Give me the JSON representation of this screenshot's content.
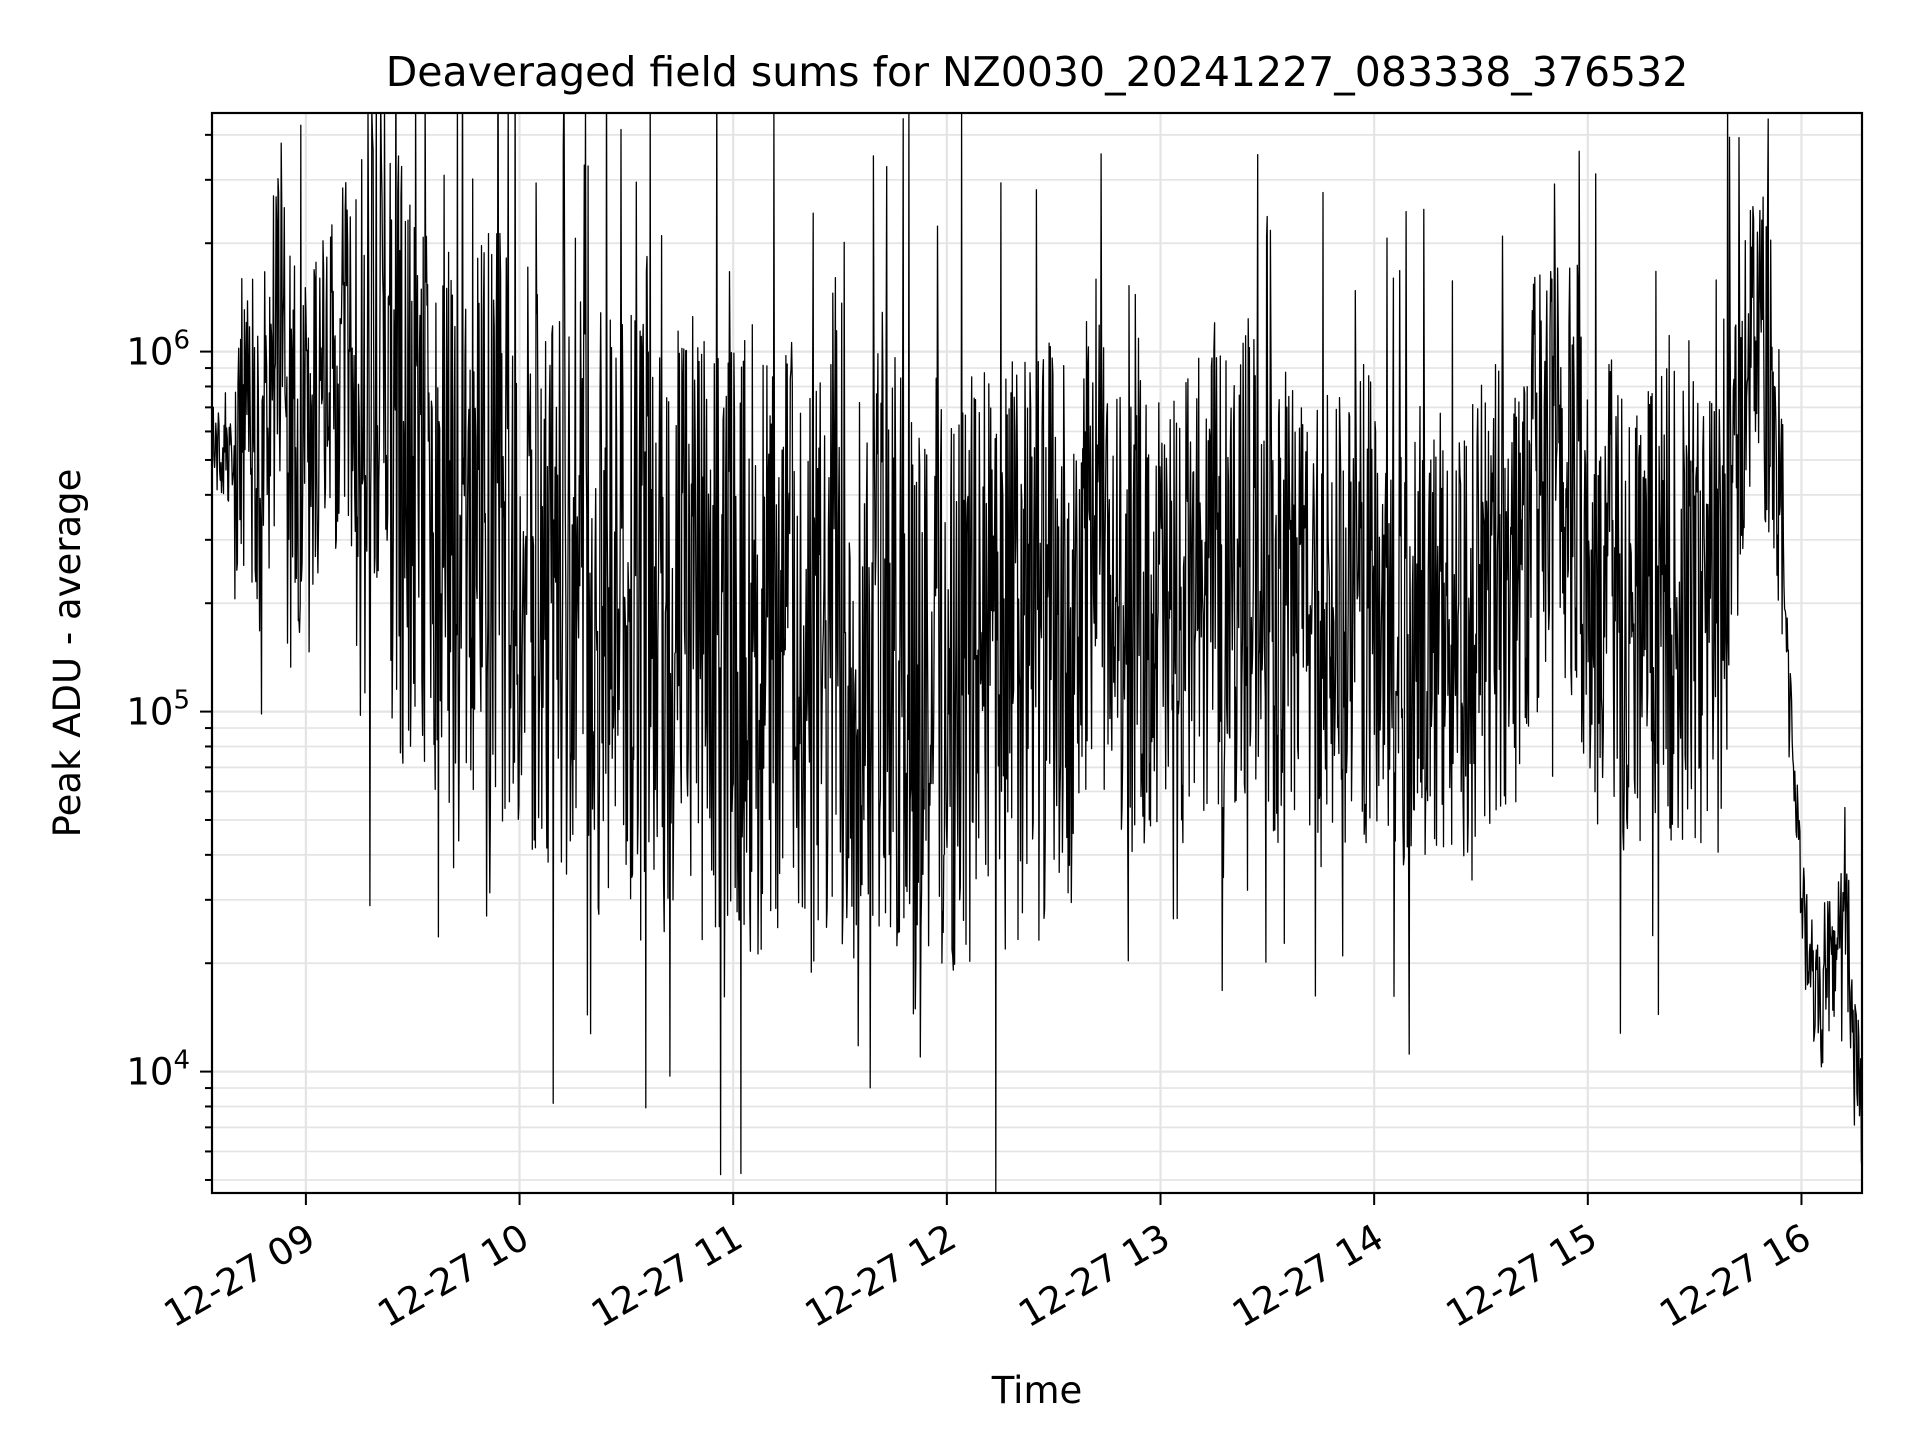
{
  "chart_data": {
    "type": "line",
    "title": "Deaveraged field sums for NZ0030_20241227_083338_376532",
    "xlabel": "Time",
    "ylabel": "Peak ADU - average",
    "yscale": "log",
    "xlim": [
      "2024-12-27 08:33:38",
      "2024-12-27 16:17:00"
    ],
    "ylim": [
      4600,
      4600000
    ],
    "grid": true,
    "x_ticks": [
      "12-27 09",
      "12-27 10",
      "12-27 11",
      "12-27 12",
      "12-27 13",
      "12-27 14",
      "12-27 15",
      "12-27 16"
    ],
    "y_ticks": [
      {
        "value": 10000,
        "base": "10",
        "exp": "4"
      },
      {
        "value": 100000,
        "base": "10",
        "exp": "5"
      },
      {
        "value": 1000000,
        "base": "10",
        "exp": "6"
      }
    ],
    "color": "#000000",
    "series": [
      {
        "x": [
          "08:34",
          "08:38",
          "08:42",
          "08:46",
          "08:50",
          "08:52",
          "08:54",
          "08:56",
          "08:58",
          "09:00",
          "09:04",
          "09:08",
          "09:12",
          "09:14",
          "09:20",
          "09:24",
          "09:30",
          "09:36",
          "09:42",
          "09:48",
          "09:54",
          "10:00",
          "10:06",
          "10:12",
          "10:18",
          "10:24",
          "10:30",
          "10:36",
          "10:42",
          "10:48",
          "10:54",
          "11:00",
          "11:06",
          "11:12",
          "11:18",
          "11:24",
          "11:30",
          "11:36",
          "11:42",
          "11:48",
          "11:54",
          "12:00",
          "12:06",
          "12:12",
          "12:18",
          "12:24",
          "12:30",
          "12:36",
          "12:40",
          "12:46",
          "12:52",
          "12:58",
          "13:04",
          "13:10",
          "13:16",
          "13:22",
          "13:28",
          "13:34",
          "13:40",
          "13:46",
          "13:52",
          "13:58",
          "14:04",
          "14:10",
          "14:16",
          "14:22",
          "14:28",
          "14:34",
          "14:40",
          "14:46",
          "14:52",
          "14:58",
          "15:04",
          "15:10",
          "15:16",
          "15:22",
          "15:28",
          "15:34",
          "15:38",
          "15:42",
          "15:44",
          "15:46",
          "15:48",
          "15:50",
          "15:52",
          "15:54",
          "15:56",
          "15:58",
          "16:00",
          "16:02",
          "16:04",
          "16:06",
          "16:08",
          "16:10",
          "16:12",
          "16:14",
          "16:16",
          "16:17"
        ],
        "y": [
          550000,
          480000,
          520000,
          500000,
          560000,
          1500000,
          1200000,
          800000,
          500000,
          600000,
          700000,
          800000,
          1000000,
          400000,
          1000000,
          600000,
          350000,
          400000,
          250000,
          300000,
          350000,
          300000,
          260000,
          220000,
          250000,
          180000,
          220000,
          170000,
          160000,
          200000,
          150000,
          180000,
          140000,
          160000,
          150000,
          130000,
          140000,
          150000,
          160000,
          130000,
          140000,
          120000,
          130000,
          140000,
          150000,
          160000,
          150000,
          120000,
          350000,
          200000,
          180000,
          200000,
          170000,
          220000,
          230000,
          250000,
          300000,
          160000,
          200000,
          220000,
          170000,
          200000,
          180000,
          160000,
          170000,
          150000,
          180000,
          220000,
          250000,
          400000,
          450000,
          350000,
          250000,
          180000,
          200000,
          220000,
          170000,
          190000,
          300000,
          500000,
          900000,
          1200000,
          1300000,
          900000,
          700000,
          400000,
          150000,
          70000,
          30000,
          20000,
          17000,
          15000,
          20000,
          22000,
          27000,
          15000,
          10000,
          6000
        ]
      }
    ]
  }
}
